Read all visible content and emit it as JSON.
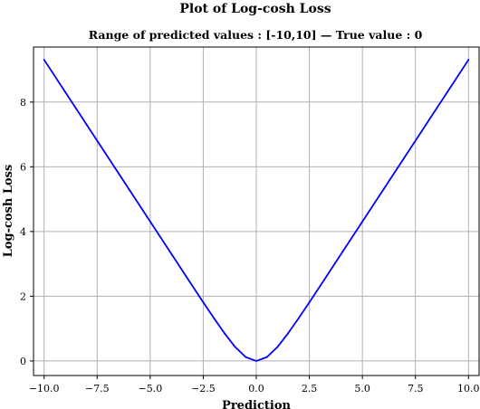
{
  "chart_data": {
    "type": "line",
    "title": "Plot of Log-cosh Loss",
    "subtitle": "Range of predicted values : [-10,10] — True value : 0",
    "xlabel": "Prediction",
    "ylabel": "Log-cosh Loss",
    "xlim": [
      -10.5,
      10.5
    ],
    "ylim": [
      -0.45,
      9.7
    ],
    "xticks": [
      -10.0,
      -7.5,
      -5.0,
      -2.5,
      0.0,
      2.5,
      5.0,
      7.5,
      10.0
    ],
    "xtick_labels": [
      "−10.0",
      "−7.5",
      "−5.0",
      "−2.5",
      "0.0",
      "2.5",
      "5.0",
      "7.5",
      "10.0"
    ],
    "yticks": [
      0,
      2,
      4,
      6,
      8
    ],
    "ytick_labels": [
      "0",
      "2",
      "4",
      "6",
      "8"
    ],
    "grid": true,
    "legend": "none",
    "series": [
      {
        "color": "#0000ff",
        "x": [
          -10,
          -9,
          -8,
          -7,
          -6,
          -5,
          -4,
          -3,
          -2.5,
          -2,
          -1.5,
          -1,
          -0.5,
          0,
          0.5,
          1,
          1.5,
          2,
          2.5,
          3,
          4,
          5,
          6,
          7,
          8,
          9,
          10
        ],
        "y": [
          9.307,
          8.307,
          7.307,
          6.307,
          5.307,
          4.307,
          3.307,
          2.309,
          1.813,
          1.325,
          0.856,
          0.434,
          0.12,
          0,
          0.12,
          0.434,
          0.856,
          1.325,
          1.813,
          2.309,
          3.307,
          4.307,
          5.307,
          6.307,
          7.307,
          8.307,
          9.307
        ]
      }
    ]
  },
  "colors": {
    "grid": "#b0b0b0",
    "axis": "#000000",
    "line": "#0000ff"
  }
}
